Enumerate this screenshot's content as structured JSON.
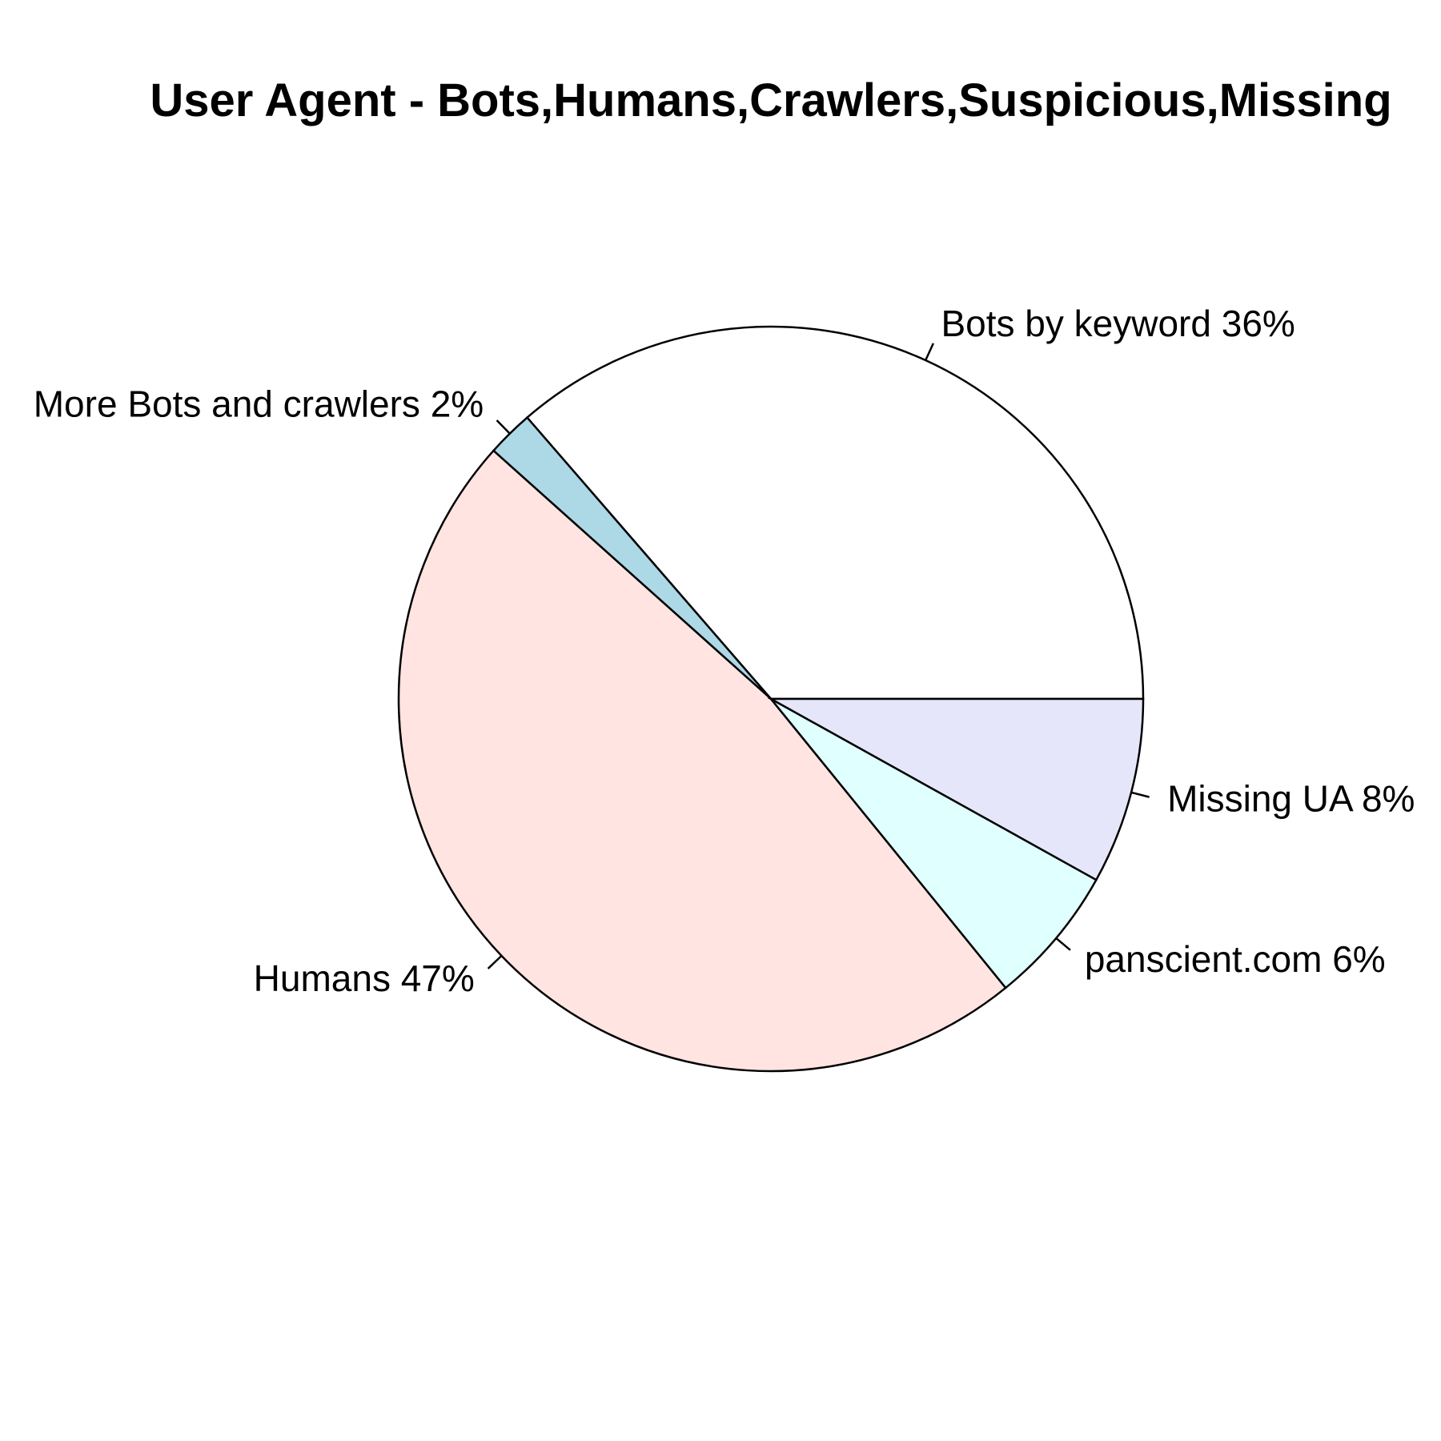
{
  "chart_data": {
    "type": "pie",
    "title": "User Agent - Bots,Humans,Crawlers,Suspicious,Missing",
    "slices": [
      {
        "label": "Bots by keyword 36%",
        "value": 36,
        "color": "#ffffff"
      },
      {
        "label": "More Bots and crawlers 2%",
        "value": 2,
        "color": "#add8e6"
      },
      {
        "label": "Humans 47%",
        "value": 47,
        "color": "#ffe4e1"
      },
      {
        "label": "panscient.com 6%",
        "value": 6,
        "color": "#e0ffff"
      },
      {
        "label": "Missing UA 8%",
        "value": 8,
        "color": "#e6e6fa"
      }
    ],
    "direction": "counterclockwise",
    "start_angle_deg": 0
  }
}
